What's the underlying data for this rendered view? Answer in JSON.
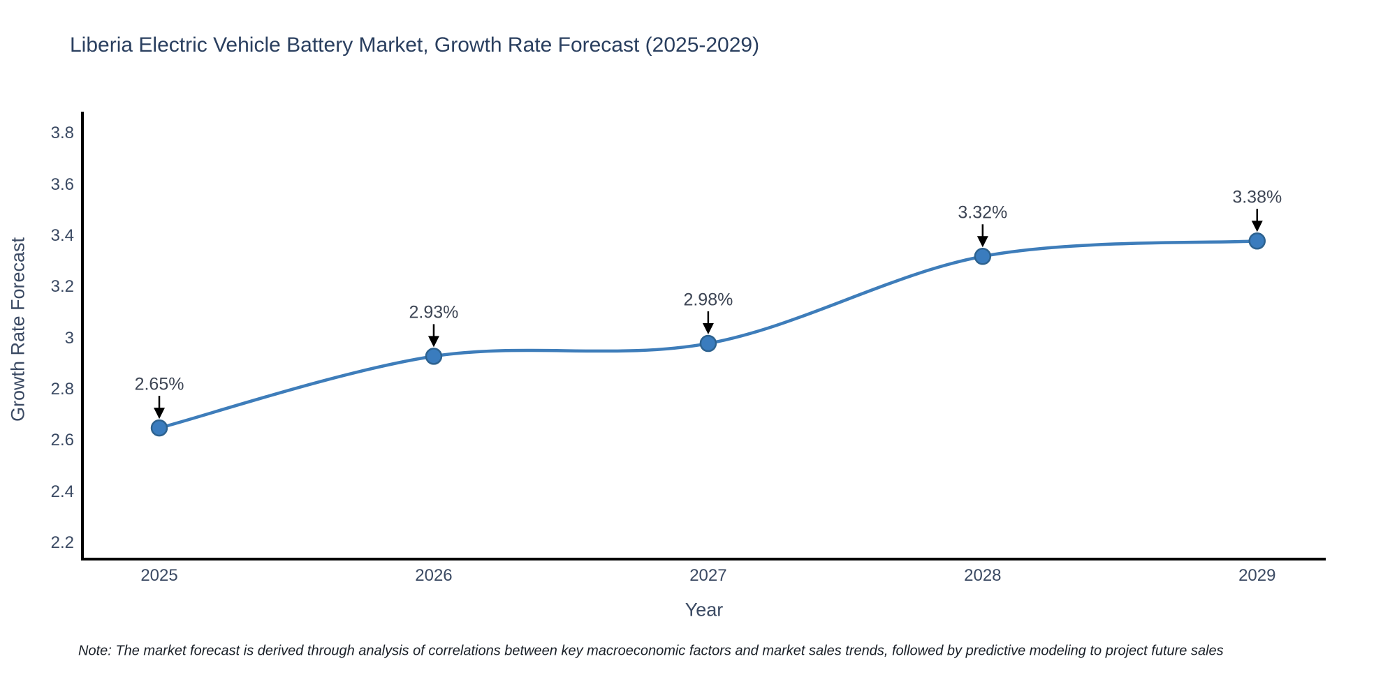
{
  "title": "Liberia Electric Vehicle Battery Market, Growth Rate Forecast (2025-2029)",
  "note": "Note: The market forecast is derived through analysis of correlations between key macroeconomic factors and market sales trends, followed by predictive modeling to project future sales",
  "chart_data": {
    "type": "line",
    "line_shape": "spline",
    "title": "Liberia Electric Vehicle Battery Market, Growth Rate Forecast (2025-2029)",
    "xlabel": "Year",
    "ylabel": "Growth Rate Forecast",
    "x": [
      2025,
      2026,
      2027,
      2028,
      2029
    ],
    "values": [
      2.65,
      2.93,
      2.98,
      3.32,
      3.38
    ],
    "point_labels": [
      "2.65%",
      "2.93%",
      "2.98%",
      "3.32%",
      "3.38%"
    ],
    "x_tick_labels": [
      "2025",
      "2026",
      "2027",
      "2028",
      "2029"
    ],
    "y_ticks": [
      2.2,
      2.4,
      2.6,
      2.8,
      3,
      3.2,
      3.4,
      3.6,
      3.8
    ],
    "y_tick_labels": [
      "2.2",
      "2.4",
      "2.6",
      "2.8",
      "3",
      "3.2",
      "3.4",
      "3.6",
      "3.8"
    ],
    "xlim": [
      2024.72,
      2029.25
    ],
    "ylim": [
      2.138,
      3.885
    ],
    "grid": false,
    "legend": false,
    "colors": {
      "line": "#3e7dba",
      "marker_fill": "#3a7cbe",
      "marker_edge": "#2d628f",
      "arrow": "#000000",
      "axis_line": "#000000",
      "text": "#2a3f5f"
    }
  }
}
